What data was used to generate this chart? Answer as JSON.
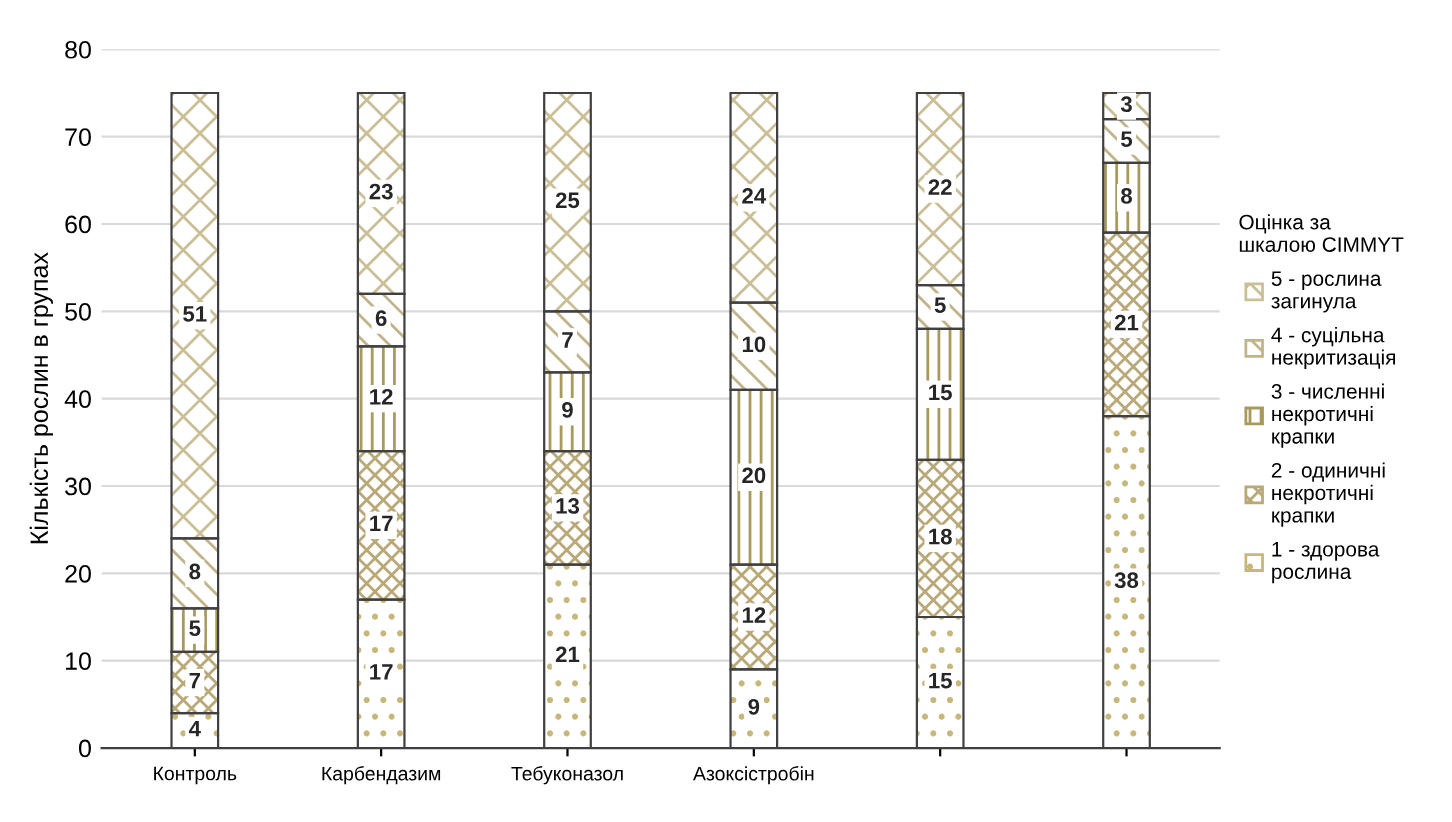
{
  "chart_data": {
    "type": "bar",
    "stacked": true,
    "ylabel": "Кількість рослин в групах",
    "legend_title": "Оцінка за\nшкалою CIMMYT",
    "categories": [
      "Контроль",
      "Карбендазим",
      "Тебуконазол",
      "Азоксістробін",
      null,
      null
    ],
    "series": [
      {
        "name": "1 - здорова\nрослина",
        "color": "#c8b77a",
        "values": [
          4,
          17,
          21,
          9,
          15,
          38
        ]
      },
      {
        "name": "2 - одиничні\nнекротичні\nкрапки",
        "color": "#b9a878",
        "values": [
          7,
          17,
          13,
          12,
          18,
          21
        ]
      },
      {
        "name": "3 - численні\nнекротичні\nкрапки",
        "color": "#a89a5c",
        "values": [
          5,
          12,
          9,
          20,
          15,
          8
        ]
      },
      {
        "name": "4 - суцільна\nнекритизація",
        "color": "#c2b48a",
        "values": [
          8,
          6,
          7,
          10,
          5,
          5
        ]
      },
      {
        "name": "5 - рослина\nзагинула",
        "color": "#cbbf98",
        "values": [
          51,
          23,
          25,
          24,
          22,
          3
        ]
      }
    ],
    "ylim": [
      0,
      80
    ],
    "yticks": [
      0,
      10,
      20,
      30,
      40,
      50,
      60,
      70,
      80
    ],
    "grid": "y",
    "legend": "right",
    "data_labels": true
  }
}
